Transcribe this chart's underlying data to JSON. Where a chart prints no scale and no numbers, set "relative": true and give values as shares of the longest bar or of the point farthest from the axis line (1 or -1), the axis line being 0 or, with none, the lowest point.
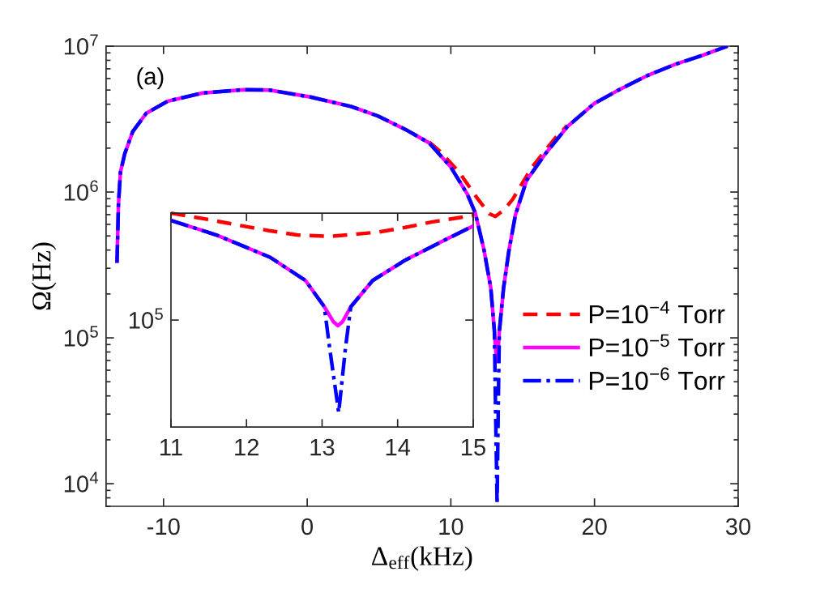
{
  "chart_data": [
    {
      "type": "line",
      "xlabel": "Δ$_{eff}$(kHz)",
      "ylabel": "Ω(Hz)",
      "log": "y",
      "legend": "right",
      "grid": false,
      "xlim": [
        -14,
        30
      ],
      "xticks": [
        -10,
        0,
        10,
        20,
        30
      ],
      "ylim": [
        7000,
        10000000
      ],
      "yticks": [
        {
          "value": 10000,
          "label": "10$^{4}$"
        },
        {
          "value": 100000,
          "label": "10$^{5}$"
        },
        {
          "value": 1000000,
          "label": "10$^{6}$"
        },
        {
          "value": 10000000,
          "label": "10$^{7}$"
        }
      ],
      "annotations": [
        "(a)"
      ],
      "series": [
        {
          "name": "P=10$^{−4}$ Torr",
          "color": "#ff0000",
          "line_style": "dashed",
          "x": [
            8.5,
            9.25,
            10.57,
            11.9,
            12.67,
            13.1,
            13.74,
            14.3,
            15.65,
            17.3,
            18.1
          ],
          "values": [
            2200000,
            1900000,
            1370000,
            890000,
            710000,
            680000,
            760000,
            890000,
            1480000,
            2370000,
            2850000
          ]
        },
        {
          "name": "P=10$^{−5}$ Torr",
          "color": "#ff00ff",
          "line_style": "solid",
          "x": [
            -13.24,
            -13.14,
            -13.0,
            -12.7,
            -12.15,
            -11.2,
            -9.7,
            -7.27,
            -4.45,
            -2.6,
            0.23,
            3.04,
            4.9,
            6.82,
            8.5,
            10.0,
            11.14,
            11.7,
            12.31,
            12.78,
            13.03,
            13.15,
            13.21,
            13.27,
            13.38,
            13.67,
            14.05,
            14.5,
            15.27,
            16.58,
            18.1,
            19.96,
            21.8,
            23.7,
            25.6,
            27.5,
            29.26
          ],
          "values": [
            327000,
            820000,
            1370000,
            1830000,
            2590000,
            3470000,
            4200000,
            4780000,
            5030000,
            5000000,
            4480000,
            3860000,
            3330000,
            2690000,
            2170000,
            1480000,
            970000,
            720000,
            400000,
            220000,
            112000,
            76000,
            69000,
            76000,
            112000,
            220000,
            400000,
            700000,
            1200000,
            1830000,
            2800000,
            4030000,
            5080000,
            6300000,
            7500000,
            8650000,
            10000000
          ]
        },
        {
          "name": "P=10$^{−6}$ Torr",
          "color": "#0000ff",
          "line_style": "dashdot",
          "x": [
            -13.24,
            -13.14,
            -13.0,
            -12.7,
            -12.15,
            -11.2,
            -9.7,
            -7.27,
            -4.45,
            -2.6,
            0.23,
            3.04,
            4.9,
            6.82,
            8.5,
            10.0,
            11.14,
            11.7,
            12.31,
            12.78,
            13.03,
            13.1,
            13.22,
            13.31,
            13.38,
            13.67,
            14.05,
            14.5,
            15.27,
            16.58,
            18.1,
            19.96,
            21.8,
            23.7,
            25.6,
            27.5,
            29.26
          ],
          "values": [
            327000,
            820000,
            1370000,
            1830000,
            2590000,
            3470000,
            4200000,
            4780000,
            5030000,
            5000000,
            4480000,
            3860000,
            3330000,
            2690000,
            2170000,
            1480000,
            970000,
            720000,
            400000,
            220000,
            112000,
            39000,
            7200,
            39000,
            112000,
            220000,
            400000,
            700000,
            1200000,
            1830000,
            2800000,
            4030000,
            5080000,
            6300000,
            7500000,
            8650000,
            10000000
          ]
        }
      ]
    },
    {
      "type": "line",
      "relative": true,
      "grid": false,
      "xlim": [
        11,
        15
      ],
      "xticks": [
        11,
        12,
        13,
        14,
        15
      ],
      "annotations": [
        "10$^{5}$"
      ],
      "series": [
        {
          "color": "#ff0000",
          "line_style": "dashed",
          "x": [
            11.0,
            11.5,
            11.95,
            12.3,
            12.67,
            13.1,
            13.74,
            14.1,
            14.46,
            15.0
          ],
          "values": [
            1.0,
            0.97,
            0.94,
            0.918,
            0.898,
            0.891,
            0.911,
            0.933,
            0.959,
            0.989
          ]
        },
        {
          "color": "#ff00ff",
          "line_style": "solid",
          "x": [
            11.0,
            11.6,
            12.31,
            12.78,
            13.03,
            13.15,
            13.21,
            13.27,
            13.38,
            13.67,
            14.1,
            14.64,
            15.0
          ],
          "values": [
            0.966,
            0.898,
            0.794,
            0.685,
            0.562,
            0.492,
            0.474,
            0.492,
            0.562,
            0.685,
            0.78,
            0.877,
            0.94
          ]
        },
        {
          "color": "#0000ff",
          "line_style": "dashdot",
          "x": [
            11.0,
            11.6,
            12.31,
            12.78,
            13.03,
            13.1,
            13.22,
            13.31,
            13.38,
            13.67,
            14.1,
            14.64,
            15.0
          ],
          "values": [
            0.966,
            0.898,
            0.794,
            0.685,
            0.562,
            0.37,
            0.068,
            0.37,
            0.562,
            0.685,
            0.78,
            0.877,
            0.94
          ]
        }
      ]
    }
  ]
}
